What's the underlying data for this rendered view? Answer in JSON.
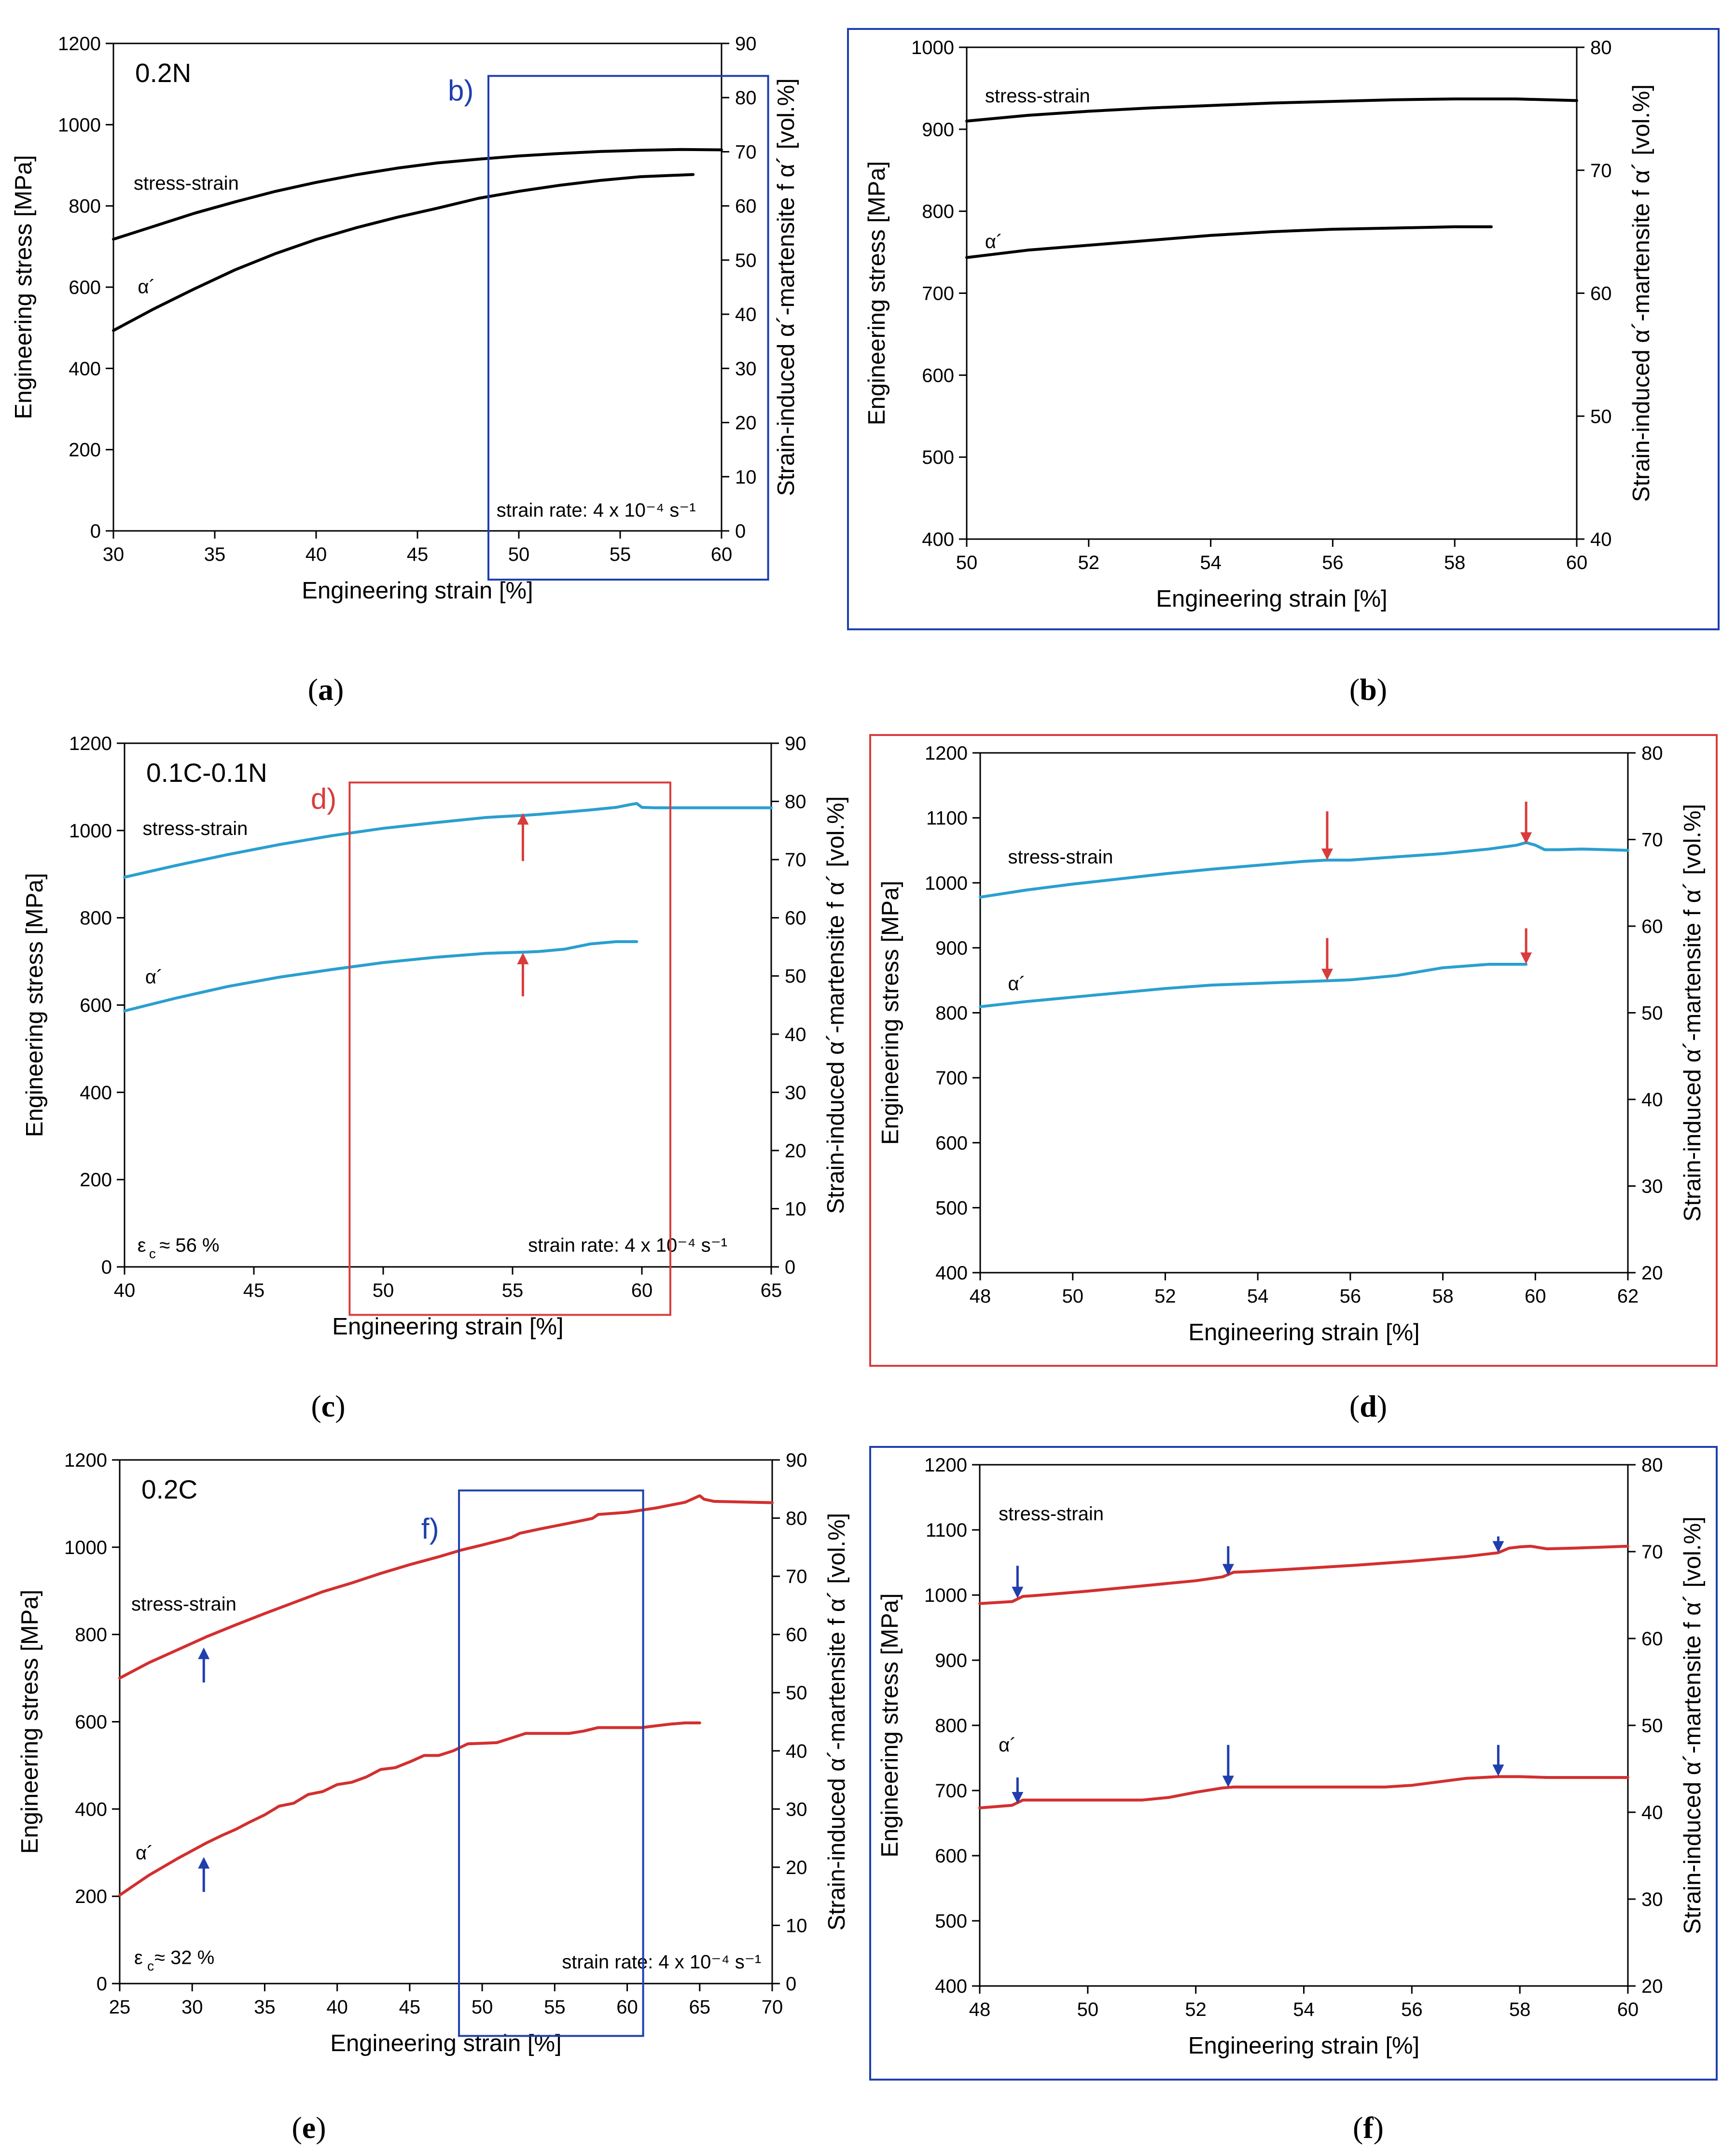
{
  "chart_data": [
    {
      "id": "a",
      "type": "line",
      "caption": "a",
      "xlabel": "Engineering strain [%]",
      "ylabel": "Engineering stress [MPa]",
      "y2label": "Strain-induced α´-martensite f α´ [vol.%]",
      "xlim": [
        30,
        60
      ],
      "ylim": [
        0,
        1200
      ],
      "y2lim": [
        0,
        90
      ],
      "xticks": [
        "30",
        "35",
        "40",
        "45",
        "50",
        "55",
        "60"
      ],
      "yticks": [
        "0",
        "200",
        "400",
        "600",
        "800",
        "1000",
        "1200"
      ],
      "y2ticks": [
        "0",
        "10",
        "20",
        "30",
        "40",
        "50",
        "60",
        "70",
        "80",
        "90"
      ],
      "color": "#000000",
      "frame_color": null,
      "sample_label": "0.2N",
      "texts": [
        {
          "text": "stress-strain",
          "x": 31,
          "y": 840
        },
        {
          "text": "α´",
          "x": 31.2,
          "y": 585
        },
        {
          "text": "strain rate: 4 x 10⁻⁴ s⁻¹",
          "x": 48.9,
          "y": 35
        }
      ],
      "inset": {
        "label": "b)",
        "color": "#1f3fae",
        "x": [
          48.5,
          62.3
        ],
        "y": [
          -120,
          1120
        ],
        "label_at": [
          46.5,
          1060
        ]
      },
      "arrows": [],
      "series": [
        {
          "name": "stress-strain",
          "axis": "y",
          "x": [
            30,
            32,
            34,
            36,
            38,
            40,
            42,
            44,
            46,
            48,
            50,
            52,
            54,
            56,
            58,
            60
          ],
          "y": [
            718,
            750,
            782,
            810,
            836,
            858,
            877,
            893,
            906,
            915,
            923,
            929,
            934,
            937,
            939,
            938
          ]
        },
        {
          "name": "α´",
          "axis": "y2",
          "x": [
            30,
            32,
            34,
            36,
            38,
            40,
            42,
            44,
            46,
            48,
            50,
            52,
            54,
            56,
            58.6
          ],
          "y": [
            37,
            41,
            44.7,
            48.2,
            51.2,
            53.8,
            56,
            57.9,
            59.6,
            61.4,
            62.7,
            63.8,
            64.7,
            65.4,
            65.8
          ]
        }
      ]
    },
    {
      "id": "b",
      "type": "line",
      "caption": "b",
      "xlabel": "Engineering strain [%]",
      "ylabel": "Engineering stress [MPa]",
      "y2label": "Strain-induced α´-martensite f α´ [vol.%]",
      "xlim": [
        50,
        60
      ],
      "ylim": [
        400,
        1000
      ],
      "y2lim": [
        40,
        80
      ],
      "xticks": [
        "50",
        "52",
        "54",
        "56",
        "58",
        "60"
      ],
      "yticks": [
        "400",
        "500",
        "600",
        "700",
        "800",
        "900",
        "1000"
      ],
      "y2ticks": [
        "40",
        "50",
        "60",
        "70",
        "80"
      ],
      "color": "#000000",
      "frame_color": "#1f3fae",
      "sample_label": "",
      "texts": [
        {
          "text": "stress-strain",
          "x": 50.3,
          "y": 933
        },
        {
          "text": "α´",
          "x": 50.3,
          "y": 755
        }
      ],
      "inset": null,
      "arrows": [],
      "series": [
        {
          "name": "stress-strain",
          "axis": "y",
          "x": [
            50,
            51,
            52,
            53,
            54,
            55,
            56,
            57,
            58,
            59,
            60
          ],
          "y": [
            910,
            917,
            922,
            926,
            929,
            932,
            934,
            936,
            937,
            937,
            935
          ]
        },
        {
          "name": "α´",
          "axis": "y2",
          "x": [
            50,
            51,
            52,
            53,
            54,
            55,
            56,
            57,
            58,
            58.6
          ],
          "y": [
            62.9,
            63.5,
            63.9,
            64.3,
            64.7,
            65,
            65.2,
            65.3,
            65.4,
            65.4
          ]
        }
      ]
    },
    {
      "id": "c",
      "type": "line",
      "caption": "c",
      "xlabel": "Engineering strain [%]",
      "ylabel": "Engineering stress [MPa]",
      "y2label": "Strain-induced α´-martensite f α´ [vol.%]",
      "xlim": [
        40,
        65
      ],
      "ylim": [
        0,
        1200
      ],
      "y2lim": [
        0,
        90
      ],
      "xticks": [
        "40",
        "45",
        "50",
        "55",
        "60",
        "65"
      ],
      "yticks": [
        "0",
        "200",
        "400",
        "600",
        "800",
        "1000",
        "1200"
      ],
      "y2ticks": [
        "0",
        "10",
        "20",
        "30",
        "40",
        "50",
        "60",
        "70",
        "80",
        "90"
      ],
      "color": "#2a9fd0",
      "frame_color": null,
      "sample_label": "0.1C-0.1N",
      "texts": [
        {
          "text": "stress-strain",
          "x": 40.7,
          "y": 990
        },
        {
          "text": "α´",
          "x": 40.8,
          "y": 650
        },
        {
          "text": "ε",
          "x": 40.5,
          "y": 35
        },
        {
          "text": "c",
          "x": 40.95,
          "y": 20
        },
        {
          "text": "≈ 56 %",
          "x": 41.35,
          "y": 35
        },
        {
          "text": "strain rate: 4 x 10⁻⁴ s⁻¹",
          "x": 55.6,
          "y": 35
        }
      ],
      "inset": {
        "label": "d)",
        "color": "#d83c3c",
        "x": [
          48.7,
          61.1
        ],
        "y": [
          -110,
          1110
        ],
        "label_at": [
          47.2,
          1050
        ]
      },
      "arrows": [
        {
          "x": 55.4,
          "y_from": 930,
          "y_to": 1040,
          "color": "#d83c3c"
        },
        {
          "x": 55.4,
          "y_from": 620,
          "y_to": 720,
          "color": "#d83c3c"
        }
      ],
      "series": [
        {
          "name": "stress-strain",
          "axis": "y",
          "x": [
            40,
            42,
            44,
            46,
            48,
            50,
            52,
            54,
            55.5,
            56,
            57,
            58,
            59,
            59.6,
            59.8,
            60,
            60.5,
            62,
            65
          ],
          "y": [
            893,
            920,
            945,
            968,
            988,
            1005,
            1018,
            1030,
            1035,
            1037,
            1042,
            1047,
            1053,
            1060,
            1062,
            1053,
            1052,
            1052,
            1052
          ]
        },
        {
          "name": "α´",
          "axis": "y2",
          "x": [
            40,
            42,
            44,
            46,
            48,
            50,
            52,
            54,
            55.5,
            56,
            57,
            58,
            59,
            59.8
          ],
          "y": [
            44,
            46.2,
            48.2,
            49.8,
            51.1,
            52.3,
            53.2,
            53.9,
            54.1,
            54.2,
            54.6,
            55.5,
            55.9,
            55.9
          ]
        }
      ]
    },
    {
      "id": "d",
      "type": "line",
      "caption": "d",
      "xlabel": "Engineering strain [%]",
      "ylabel": "Engineering stress [MPa]",
      "y2label": "Strain-induced α´-martensite f α´ [vol.%]",
      "xlim": [
        48,
        62
      ],
      "ylim": [
        400,
        1200
      ],
      "y2lim": [
        20,
        80
      ],
      "xticks": [
        "48",
        "50",
        "52",
        "54",
        "56",
        "58",
        "60",
        "62"
      ],
      "yticks": [
        "400",
        "500",
        "600",
        "700",
        "800",
        "900",
        "1000",
        "1100",
        "1200"
      ],
      "y2ticks": [
        "20",
        "30",
        "40",
        "50",
        "60",
        "70",
        "80"
      ],
      "color": "#2a9fd0",
      "frame_color": "#d83c3c",
      "sample_label": "",
      "texts": [
        {
          "text": "stress-strain",
          "x": 48.6,
          "y": 1030
        },
        {
          "text": "α´",
          "x": 48.6,
          "y": 835
        }
      ],
      "inset": null,
      "arrows": [
        {
          "x": 55.5,
          "y_from": 1110,
          "y_to": 1035,
          "color": "#d83c3c"
        },
        {
          "x": 59.8,
          "y_from": 1125,
          "y_to": 1060,
          "color": "#d83c3c"
        },
        {
          "x": 55.5,
          "y_from": 915,
          "y_to": 850,
          "color": "#d83c3c"
        },
        {
          "x": 59.8,
          "y_from": 930,
          "y_to": 875,
          "color": "#d83c3c"
        }
      ],
      "series": [
        {
          "name": "stress-strain",
          "axis": "y",
          "x": [
            48,
            49,
            50,
            51,
            52,
            53,
            54,
            55,
            55.5,
            56,
            57,
            58,
            59,
            59.6,
            59.8,
            60,
            60.2,
            60.5,
            61,
            62
          ],
          "y": [
            978,
            989,
            998,
            1006,
            1014,
            1021,
            1027,
            1033,
            1035,
            1035,
            1040,
            1045,
            1052,
            1058,
            1062,
            1058,
            1051,
            1051,
            1052,
            1050
          ]
        },
        {
          "name": "α´",
          "axis": "y2",
          "x": [
            48,
            49,
            50,
            51,
            52,
            53,
            54,
            55,
            55.5,
            56,
            57,
            58,
            59,
            59.8
          ],
          "y": [
            50.7,
            51.3,
            51.8,
            52.3,
            52.8,
            53.2,
            53.4,
            53.6,
            53.7,
            53.8,
            54.3,
            55.2,
            55.6,
            55.6
          ]
        }
      ]
    },
    {
      "id": "e",
      "type": "line",
      "caption": "e",
      "xlabel": "Engineering strain [%]",
      "ylabel": "Engineering stress [MPa]",
      "y2label": "Strain-induced α´-martensite f α´ [vol.%]",
      "xlim": [
        25,
        70
      ],
      "ylim": [
        0,
        1200
      ],
      "y2lim": [
        0,
        90
      ],
      "xticks": [
        "25",
        "30",
        "35",
        "40",
        "45",
        "50",
        "55",
        "60",
        "65",
        "70"
      ],
      "yticks": [
        "0",
        "200",
        "400",
        "600",
        "800",
        "1000",
        "1200"
      ],
      "y2ticks": [
        "0",
        "10",
        "20",
        "30",
        "40",
        "50",
        "60",
        "70",
        "80",
        "90"
      ],
      "color": "#d32f2f",
      "frame_color": null,
      "sample_label": "0.2C",
      "texts": [
        {
          "text": "stress-strain",
          "x": 25.8,
          "y": 855
        },
        {
          "text": "α´",
          "x": 26.1,
          "y": 285
        },
        {
          "text": "ε",
          "x": 26.0,
          "y": 45
        },
        {
          "text": "c",
          "x": 26.9,
          "y": 30
        },
        {
          "text": "≈ 32 %",
          "x": 27.4,
          "y": 45
        },
        {
          "text": "strain rate: 4 x 10⁻⁴ s⁻¹",
          "x": 55.5,
          "y": 35
        }
      ],
      "inset": {
        "label": "f)",
        "color": "#1f3fae",
        "x": [
          48.4,
          61.1
        ],
        "y": [
          -120,
          1130
        ],
        "label_at": [
          45.8,
          1020
        ]
      },
      "arrows": [
        {
          "x": 30.8,
          "y_from": 690,
          "y_to": 770,
          "color": "#1f3fae"
        },
        {
          "x": 30.8,
          "y_from": 210,
          "y_to": 290,
          "color": "#1f3fae"
        }
      ],
      "series": [
        {
          "name": "stress-strain",
          "axis": "y",
          "x": [
            25,
            27,
            29,
            31,
            33,
            35,
            37,
            39,
            41,
            43,
            45,
            47,
            48.5,
            50,
            52,
            52.6,
            54,
            56,
            57.6,
            58,
            60,
            62,
            64,
            65,
            65.3,
            66,
            70
          ],
          "y": [
            700,
            735,
            765,
            795,
            822,
            848,
            873,
            898,
            918,
            940,
            960,
            978,
            993,
            1005,
            1022,
            1032,
            1042,
            1055,
            1066,
            1075,
            1080,
            1090,
            1103,
            1118,
            1110,
            1105,
            1102
          ]
        },
        {
          "name": "α´",
          "axis": "y2",
          "x": [
            25,
            27,
            29,
            31,
            32,
            33,
            34,
            35,
            36,
            37,
            38,
            39,
            40,
            41,
            42,
            43,
            44,
            45,
            46,
            47,
            48,
            49,
            50,
            51,
            52,
            53,
            54,
            55,
            56,
            57,
            58,
            59,
            60,
            61,
            62,
            63,
            64,
            65
          ],
          "y": [
            15.2,
            18.6,
            21.5,
            24.2,
            25.4,
            26.5,
            27.8,
            29,
            30.5,
            31,
            32.5,
            33,
            34.2,
            34.6,
            35.5,
            36.8,
            37.1,
            38.1,
            39.2,
            39.2,
            40,
            41.2,
            41.3,
            41.4,
            42.2,
            43,
            43,
            43,
            43,
            43.4,
            44,
            44,
            44,
            44,
            44.3,
            44.6,
            44.8,
            44.8
          ]
        }
      ]
    },
    {
      "id": "f",
      "type": "line",
      "caption": "f",
      "xlabel": "Engineering strain [%]",
      "ylabel": "Engineering stress [MPa]",
      "y2label": "Strain-induced α´-martensite f α´ [vol.%]",
      "xlim": [
        48,
        60
      ],
      "ylim": [
        400,
        1200
      ],
      "y2lim": [
        20,
        80
      ],
      "xticks": [
        "48",
        "50",
        "52",
        "54",
        "56",
        "58",
        "60"
      ],
      "yticks": [
        "400",
        "500",
        "600",
        "700",
        "800",
        "900",
        "1000",
        "1100",
        "1200"
      ],
      "y2ticks": [
        "20",
        "30",
        "40",
        "50",
        "60",
        "70",
        "80"
      ],
      "color": "#d32f2f",
      "frame_color": "#1f3fae",
      "sample_label": "",
      "texts": [
        {
          "text": "stress-strain",
          "x": 48.35,
          "y": 1115
        },
        {
          "text": "α´",
          "x": 48.35,
          "y": 760
        }
      ],
      "inset": null,
      "arrows": [
        {
          "x": 48.7,
          "y_from": 1045,
          "y_to": 995,
          "color": "#1f3fae"
        },
        {
          "x": 52.6,
          "y_from": 1075,
          "y_to": 1030,
          "color": "#1f3fae"
        },
        {
          "x": 57.6,
          "y_from": 1090,
          "y_to": 1065,
          "color": "#1f3fae"
        },
        {
          "x": 48.7,
          "y_from": 720,
          "y_to": 680,
          "color": "#1f3fae"
        },
        {
          "x": 52.6,
          "y_from": 770,
          "y_to": 705,
          "color": "#1f3fae"
        },
        {
          "x": 57.6,
          "y_from": 770,
          "y_to": 722,
          "color": "#1f3fae"
        }
      ],
      "series": [
        {
          "name": "stress-strain",
          "axis": "y",
          "x": [
            48,
            48.6,
            48.8,
            49,
            50,
            51,
            52,
            52.5,
            52.7,
            53,
            54,
            55,
            56,
            57,
            57.6,
            57.8,
            58,
            58.2,
            58.5,
            59,
            60
          ],
          "y": [
            987,
            990,
            998,
            999,
            1006,
            1014,
            1022,
            1028,
            1035,
            1036,
            1041,
            1046,
            1052,
            1059,
            1065,
            1072,
            1074,
            1075,
            1071,
            1072,
            1075
          ]
        },
        {
          "name": "α´",
          "axis": "y2",
          "x": [
            48,
            48.6,
            48.8,
            49,
            50,
            51,
            51.5,
            52,
            52.5,
            52.7,
            53,
            54,
            55,
            55.5,
            56,
            57,
            57.6,
            58,
            58.5,
            59,
            60
          ],
          "y": [
            40.5,
            40.8,
            41.4,
            41.4,
            41.4,
            41.4,
            41.7,
            42.3,
            42.8,
            42.9,
            42.9,
            42.9,
            42.9,
            42.9,
            43.1,
            43.9,
            44.1,
            44.1,
            44,
            44,
            44
          ]
        }
      ]
    }
  ]
}
